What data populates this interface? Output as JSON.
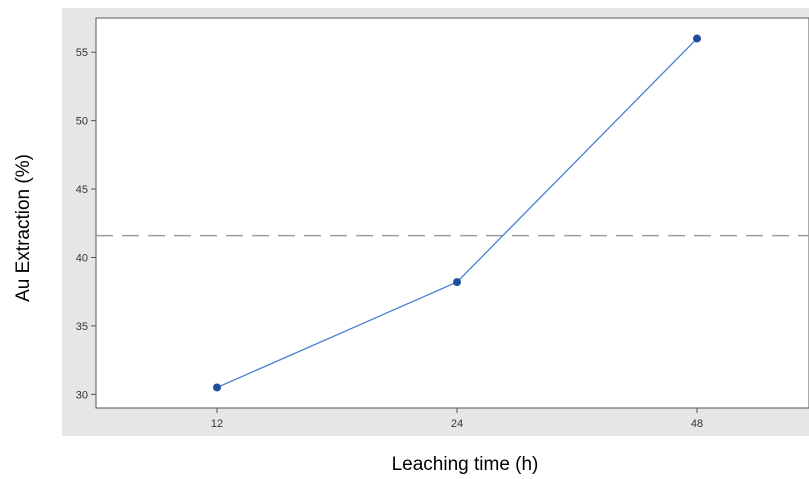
{
  "chart_data": {
    "type": "line",
    "title": "",
    "xlabel": "Leaching time (h)",
    "ylabel": "Au Extraction (%)",
    "categories": [
      "12",
      "24",
      "48"
    ],
    "series": [
      {
        "values": [
          30.5,
          38.2,
          56.0
        ]
      }
    ],
    "reference_line": {
      "y": 41.6,
      "style": "dashed"
    },
    "ylim": [
      29.0,
      57.5
    ],
    "yticks": [
      30,
      35,
      40,
      45,
      50,
      55
    ],
    "grid": false,
    "colors": {
      "line": "#4a7fd4",
      "marker": "#1f4e9c",
      "reference": "#9e9e9e",
      "outer_background": "#e6e6e6",
      "plot_background": "#ffffff"
    }
  }
}
